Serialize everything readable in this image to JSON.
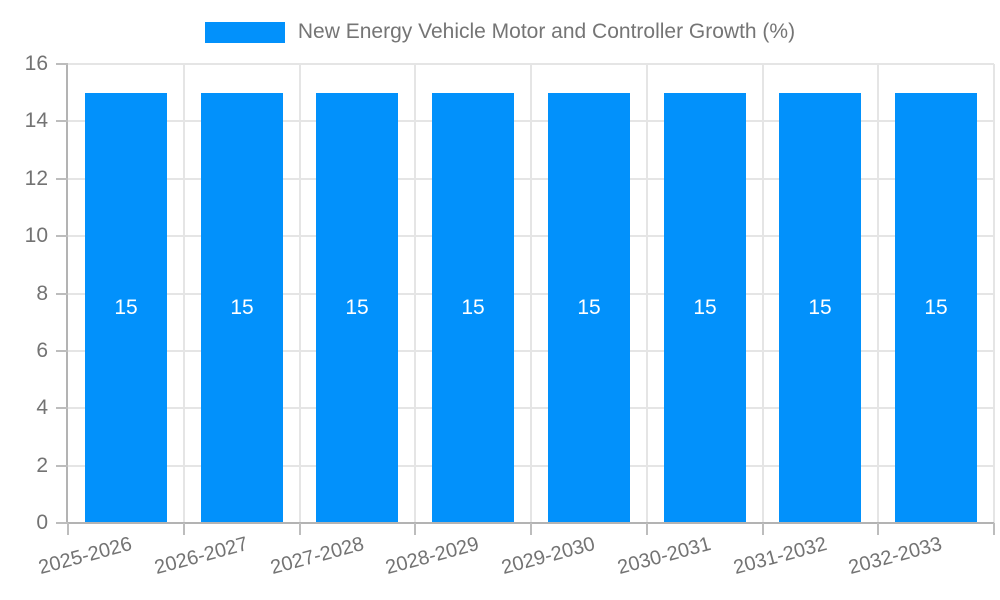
{
  "legend": {
    "label": "New Energy Vehicle Motor and Controller Growth (%)"
  },
  "colors": {
    "bar": "#0291fb",
    "grid": "#e5e5e5",
    "axis": "#b3b3b3",
    "tick": "#bdbdbd",
    "tick_text": "#737373",
    "value_label": "#ffffff",
    "legend_text": "#757575"
  },
  "chart_data": {
    "type": "bar",
    "title": "New Energy Vehicle Motor and Controller Growth (%)",
    "categories": [
      "2025-2026",
      "2026-2027",
      "2027-2028",
      "2028-2029",
      "2029-2030",
      "2030-2031",
      "2031-2032",
      "2032-2033"
    ],
    "values": [
      15,
      15,
      15,
      15,
      15,
      15,
      15,
      15
    ],
    "data_labels": [
      "15",
      "15",
      "15",
      "15",
      "15",
      "15",
      "15",
      "15"
    ],
    "xlabel": "",
    "ylabel": "",
    "ylim": [
      0,
      16
    ],
    "yticks": [
      0,
      2,
      4,
      6,
      8,
      10,
      12,
      14,
      16
    ],
    "grid": true,
    "legend_position": "top",
    "bar_value_labels_shown": true,
    "x_label_rotation_deg": -15
  }
}
